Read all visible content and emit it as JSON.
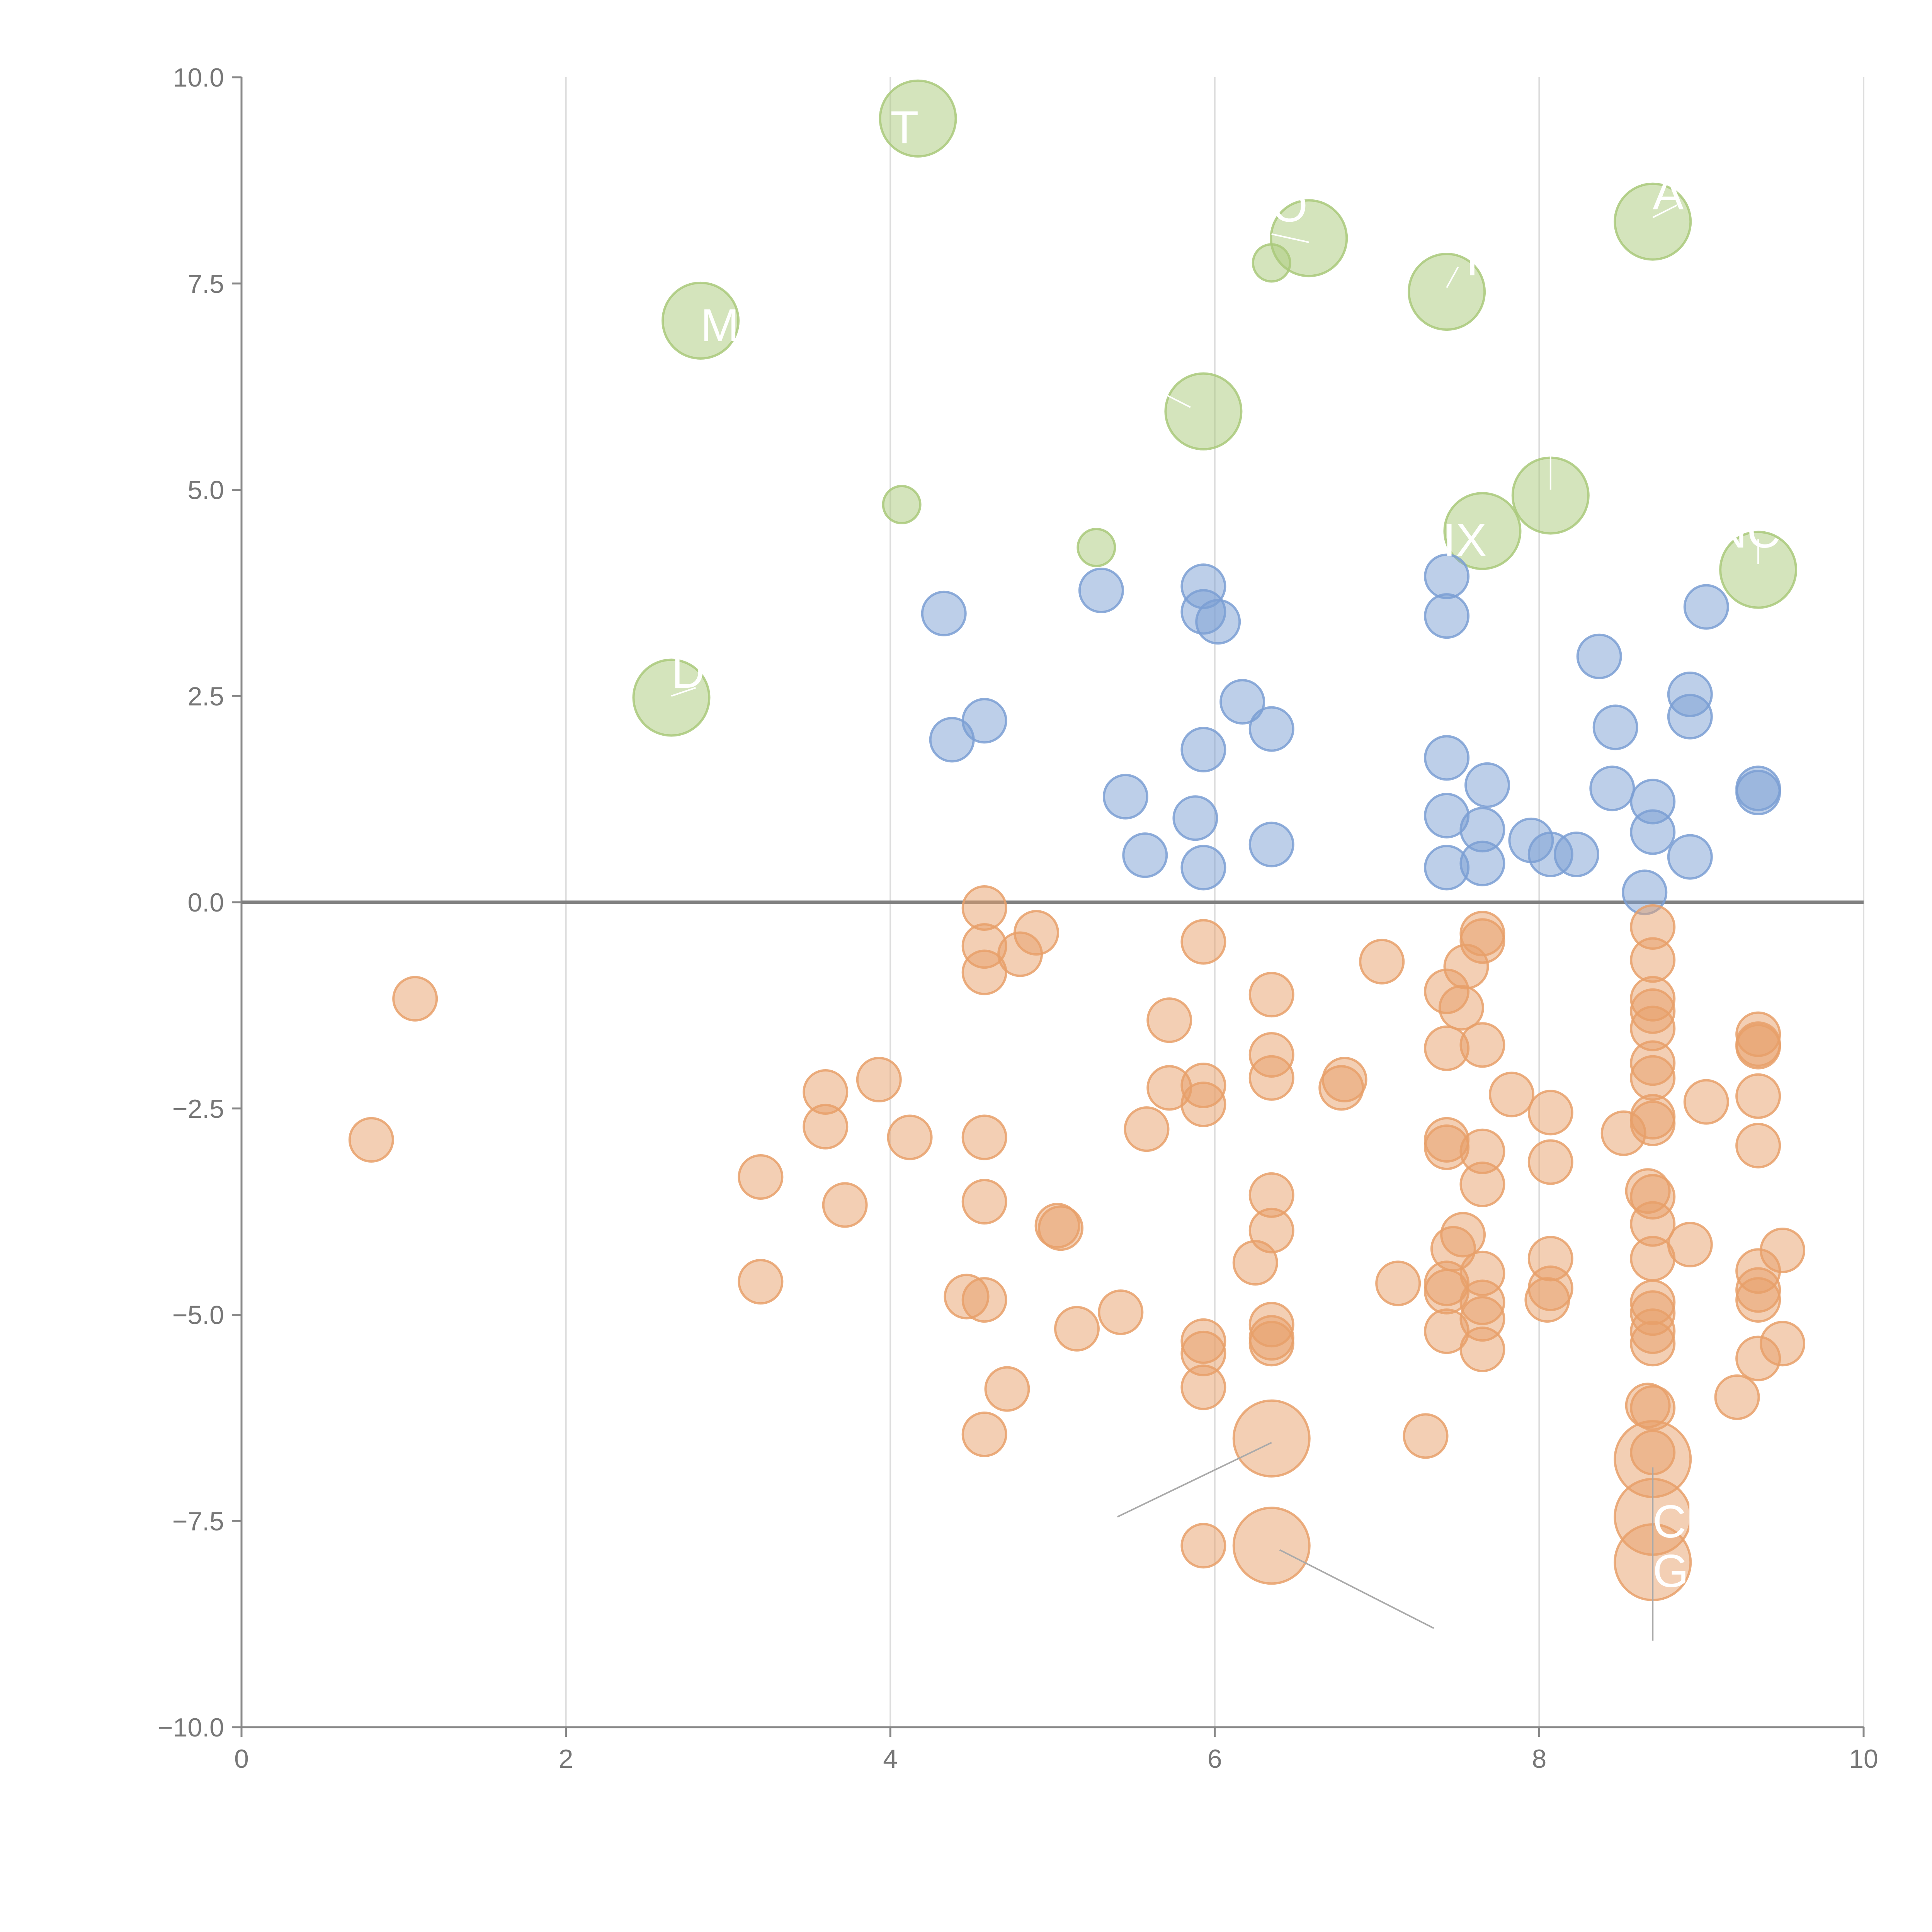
{
  "chart_data": {
    "type": "scatter",
    "title": "",
    "xlabel": "",
    "ylabel": "",
    "xlim": [
      0,
      10
    ],
    "ylim": [
      -10,
      10
    ],
    "x_ticks": [
      0,
      2,
      4,
      6,
      8,
      10
    ],
    "y_ticks": [
      -10,
      -7.5,
      -5,
      -2.5,
      0,
      2.5,
      5,
      7.5,
      10
    ],
    "x_tick_labels": [
      "0",
      "2",
      "4",
      "6",
      "8",
      "10"
    ],
    "y_tick_labels": [
      "−10.0",
      "−7.5",
      "−5.0",
      "−2.5",
      "0.0",
      "2.5",
      "5.0",
      "7.5",
      "10.0"
    ],
    "grid": "vertical",
    "reference_line_y": 0,
    "colors": {
      "green": "#a9c97a",
      "blue": "#7b9fd4",
      "orange": "#e8a06a",
      "axis": "#888888",
      "grid": "#dddddd",
      "tick_text": "#777777"
    },
    "series": [
      {
        "name": "green",
        "color": "#a9c97a",
        "points": [
          [
            4.17,
            9.5,
            2
          ],
          [
            6.58,
            8.05,
            2
          ],
          [
            6.35,
            7.75,
            0.9
          ],
          [
            8.7,
            8.25,
            2
          ],
          [
            7.43,
            7.4,
            2
          ],
          [
            2.83,
            7.05,
            2
          ],
          [
            5.93,
            5.95,
            2
          ],
          [
            4.07,
            4.82,
            0.9
          ],
          [
            5.27,
            4.3,
            0.9
          ],
          [
            8.07,
            4.93,
            2
          ],
          [
            7.65,
            4.5,
            2
          ],
          [
            9.35,
            4.03,
            2
          ],
          [
            2.65,
            2.48,
            2
          ]
        ]
      },
      {
        "name": "blue",
        "color": "#7b9fd4",
        "points": [
          [
            4.33,
            3.5,
            1
          ],
          [
            5.3,
            3.78,
            1
          ],
          [
            5.93,
            3.83,
            1
          ],
          [
            5.93,
            3.52,
            1
          ],
          [
            6.02,
            3.4,
            1
          ],
          [
            7.43,
            3.95,
            1
          ],
          [
            7.43,
            3.47,
            1
          ],
          [
            9.03,
            3.58,
            1
          ],
          [
            8.37,
            2.98,
            1
          ],
          [
            8.93,
            2.52,
            1
          ],
          [
            8.93,
            2.25,
            1
          ],
          [
            8.47,
            2.12,
            1
          ],
          [
            6.17,
            2.43,
            1
          ],
          [
            6.35,
            2.1,
            1
          ],
          [
            4.58,
            2.2,
            1
          ],
          [
            4.38,
            1.97,
            1
          ],
          [
            5.93,
            1.85,
            1
          ],
          [
            5.45,
            1.28,
            1
          ],
          [
            5.88,
            1.02,
            1
          ],
          [
            7.43,
            1.75,
            1
          ],
          [
            7.68,
            1.42,
            1
          ],
          [
            8.45,
            1.38,
            1
          ],
          [
            8.7,
            1.22,
            1
          ],
          [
            9.35,
            1.38,
            1
          ],
          [
            9.35,
            1.33,
            1
          ],
          [
            7.43,
            1.05,
            1
          ],
          [
            7.65,
            0.88,
            1
          ],
          [
            7.95,
            0.75,
            1
          ],
          [
            8.7,
            0.85,
            1
          ],
          [
            5.57,
            0.57,
            1
          ],
          [
            5.93,
            0.42,
            1
          ],
          [
            6.35,
            0.7,
            1
          ],
          [
            7.43,
            0.42,
            1
          ],
          [
            7.65,
            0.47,
            1
          ],
          [
            8.07,
            0.58,
            1
          ],
          [
            8.23,
            0.58,
            1
          ],
          [
            8.93,
            0.55,
            1
          ],
          [
            8.65,
            0.12,
            1
          ]
        ]
      },
      {
        "name": "orange",
        "color": "#e8a06a",
        "points": [
          [
            1.07,
            -1.17,
            1
          ],
          [
            0.8,
            -2.88,
            1
          ],
          [
            3.6,
            -2.3,
            1
          ],
          [
            3.6,
            -2.72,
            1
          ],
          [
            3.93,
            -2.15,
            1
          ],
          [
            3.2,
            -3.33,
            1
          ],
          [
            3.72,
            -3.67,
            1
          ],
          [
            3.2,
            -4.6,
            1
          ],
          [
            4.12,
            -2.85,
            1
          ],
          [
            4.58,
            -0.07,
            1
          ],
          [
            4.58,
            -0.53,
            1
          ],
          [
            4.58,
            -0.85,
            1
          ],
          [
            4.8,
            -0.63,
            1
          ],
          [
            4.9,
            -0.37,
            1
          ],
          [
            4.58,
            -2.85,
            1
          ],
          [
            4.58,
            -3.63,
            1
          ],
          [
            4.47,
            -4.78,
            1
          ],
          [
            4.58,
            -4.82,
            1
          ],
          [
            4.72,
            -5.9,
            1
          ],
          [
            4.58,
            -6.45,
            1
          ],
          [
            5.03,
            -3.92,
            1
          ],
          [
            5.05,
            -3.95,
            1
          ],
          [
            5.15,
            -5.17,
            1
          ],
          [
            5.42,
            -4.97,
            1
          ],
          [
            5.72,
            -1.43,
            1
          ],
          [
            5.72,
            -2.25,
            1
          ],
          [
            5.58,
            -2.75,
            1
          ],
          [
            5.93,
            -0.48,
            1
          ],
          [
            5.93,
            -2.22,
            1
          ],
          [
            5.93,
            -2.45,
            1
          ],
          [
            5.93,
            -5.32,
            1
          ],
          [
            5.93,
            -5.47,
            1
          ],
          [
            5.93,
            -5.88,
            1
          ],
          [
            5.93,
            -7.8,
            1
          ],
          [
            6.35,
            -1.12,
            1
          ],
          [
            6.35,
            -1.85,
            1
          ],
          [
            6.35,
            -2.13,
            1
          ],
          [
            6.35,
            -3.55,
            1
          ],
          [
            6.35,
            -3.98,
            1
          ],
          [
            6.25,
            -4.37,
            1
          ],
          [
            6.35,
            -5.12,
            1
          ],
          [
            6.35,
            -5.28,
            1
          ],
          [
            6.35,
            -5.35,
            1
          ],
          [
            6.35,
            -6.5,
            2
          ],
          [
            6.35,
            -7.8,
            2
          ],
          [
            6.8,
            -2.15,
            1
          ],
          [
            6.78,
            -2.25,
            1
          ],
          [
            7.03,
            -0.72,
            1
          ],
          [
            7.13,
            -4.62,
            1
          ],
          [
            7.3,
            -6.47,
            1
          ],
          [
            7.43,
            -1.08,
            1
          ],
          [
            7.52,
            -1.28,
            1
          ],
          [
            7.43,
            -1.77,
            1
          ],
          [
            7.43,
            -2.88,
            1
          ],
          [
            7.43,
            -2.97,
            1
          ],
          [
            7.47,
            -4.2,
            1
          ],
          [
            7.53,
            -4.03,
            1
          ],
          [
            7.43,
            -4.62,
            1
          ],
          [
            7.43,
            -4.72,
            1
          ],
          [
            7.43,
            -5.2,
            1
          ],
          [
            7.55,
            -0.78,
            1
          ],
          [
            7.65,
            -0.38,
            1
          ],
          [
            7.65,
            -0.47,
            1
          ],
          [
            7.65,
            -1.73,
            1
          ],
          [
            7.65,
            -3.02,
            1
          ],
          [
            7.65,
            -3.42,
            1
          ],
          [
            7.65,
            -4.5,
            1
          ],
          [
            7.65,
            -4.85,
            1
          ],
          [
            7.65,
            -5.05,
            1
          ],
          [
            7.65,
            -5.42,
            1
          ],
          [
            7.83,
            -2.33,
            1
          ],
          [
            8.07,
            -2.55,
            1
          ],
          [
            8.07,
            -3.15,
            1
          ],
          [
            8.07,
            -4.32,
            1
          ],
          [
            8.07,
            -4.68,
            1
          ],
          [
            8.05,
            -4.82,
            1
          ],
          [
            8.52,
            -2.8,
            1
          ],
          [
            8.7,
            -0.3,
            1
          ],
          [
            8.7,
            -0.7,
            1
          ],
          [
            8.7,
            -1.17,
            1
          ],
          [
            8.7,
            -1.32,
            1
          ],
          [
            8.7,
            -1.53,
            1
          ],
          [
            8.7,
            -1.95,
            1
          ],
          [
            8.7,
            -2.13,
            1
          ],
          [
            8.7,
            -2.6,
            1
          ],
          [
            8.7,
            -2.68,
            1
          ],
          [
            8.67,
            -3.5,
            1
          ],
          [
            8.7,
            -3.57,
            1
          ],
          [
            8.7,
            -3.9,
            1
          ],
          [
            8.7,
            -4.32,
            1
          ],
          [
            8.7,
            -4.85,
            1
          ],
          [
            8.7,
            -4.98,
            1
          ],
          [
            8.7,
            -5.2,
            1
          ],
          [
            8.7,
            -5.35,
            1
          ],
          [
            8.67,
            -6.1,
            1
          ],
          [
            8.7,
            -6.13,
            1
          ],
          [
            8.7,
            -6.67,
            1
          ],
          [
            8.7,
            -6.75,
            2
          ],
          [
            8.7,
            -7.45,
            2
          ],
          [
            8.7,
            -8.0,
            2
          ],
          [
            8.93,
            -4.15,
            1
          ],
          [
            9.03,
            -2.42,
            1
          ],
          [
            9.22,
            -6.0,
            1
          ],
          [
            9.35,
            -1.6,
            1
          ],
          [
            9.35,
            -1.72,
            1
          ],
          [
            9.35,
            -1.75,
            1
          ],
          [
            9.35,
            -2.35,
            1
          ],
          [
            9.35,
            -2.95,
            1
          ],
          [
            9.35,
            -4.47,
            1
          ],
          [
            9.35,
            -4.7,
            1
          ],
          [
            9.35,
            -4.82,
            1
          ],
          [
            9.35,
            -5.53,
            1
          ],
          [
            9.5,
            -4.22,
            1
          ],
          [
            9.5,
            -5.35,
            1
          ]
        ]
      }
    ],
    "annotations": [
      {
        "text": "T",
        "x": 4.17,
        "y": 9.5,
        "tx": 4.0,
        "ty": 9.2,
        "color": "#ffffff"
      },
      {
        "text": "O",
        "x": 6.58,
        "y": 8.05,
        "tx": 6.35,
        "ty": 8.25,
        "color": "#ffffff"
      },
      {
        "text": "A",
        "x": 8.7,
        "y": 8.25,
        "tx": 8.7,
        "ty": 8.4,
        "color": "#ffffff"
      },
      {
        "text": "T",
        "x": 7.43,
        "y": 7.4,
        "tx": 7.5,
        "ty": 7.6,
        "color": "#ffffff"
      },
      {
        "text": "M",
        "x": 2.83,
        "y": 7.05,
        "tx": 2.83,
        "ty": 6.8,
        "color": "#ffffff"
      },
      {
        "text": "DIX",
        "x": 7.65,
        "y": 4.5,
        "tx": 7.2,
        "ty": 4.2,
        "color": "#ffffff"
      },
      {
        "text": "TNC",
        "x": 9.35,
        "y": 4.03,
        "tx": 8.9,
        "ty": 4.3,
        "color": "#ffffff"
      },
      {
        "text": "D",
        "x": 2.65,
        "y": 2.48,
        "tx": 2.65,
        "ty": 2.6,
        "color": "#ffffff"
      },
      {
        "text": "Ch",
        "x": 8.7,
        "y": -7.45,
        "tx": 8.7,
        "ty": -7.7,
        "color": "#ffffff"
      },
      {
        "text": "G",
        "x": 8.7,
        "y": -8.0,
        "tx": 8.7,
        "ty": -8.3,
        "color": "#ffffff"
      }
    ],
    "leaders": [
      {
        "x1": 6.35,
        "y1": 8.1,
        "x2": 6.58,
        "y2": 8.0,
        "color": "#ffffff"
      },
      {
        "x1": 8.7,
        "y1": 8.3,
        "x2": 8.85,
        "y2": 8.45,
        "color": "#ffffff"
      },
      {
        "x1": 7.43,
        "y1": 7.45,
        "x2": 7.5,
        "y2": 7.7,
        "color": "#ffffff"
      },
      {
        "x1": 5.7,
        "y1": 6.15,
        "x2": 5.85,
        "y2": 6.0,
        "color": "#ffffff"
      },
      {
        "x1": 8.07,
        "y1": 5.5,
        "x2": 8.07,
        "y2": 5.0,
        "color": "#ffffff"
      },
      {
        "x1": 9.35,
        "y1": 4.4,
        "x2": 9.35,
        "y2": 4.1,
        "color": "#ffffff"
      },
      {
        "x1": 2.65,
        "y1": 2.5,
        "x2": 2.8,
        "y2": 2.6,
        "color": "#ffffff"
      },
      {
        "x1": 6.35,
        "y1": -6.55,
        "x2": 5.4,
        "y2": -7.45,
        "color": "#aaaaaa"
      },
      {
        "x1": 6.4,
        "y1": -7.85,
        "x2": 7.35,
        "y2": -8.8,
        "color": "#aaaaaa"
      },
      {
        "x1": 8.7,
        "y1": -6.85,
        "x2": 8.7,
        "y2": -8.95,
        "color": "#aaaaaa"
      }
    ]
  }
}
